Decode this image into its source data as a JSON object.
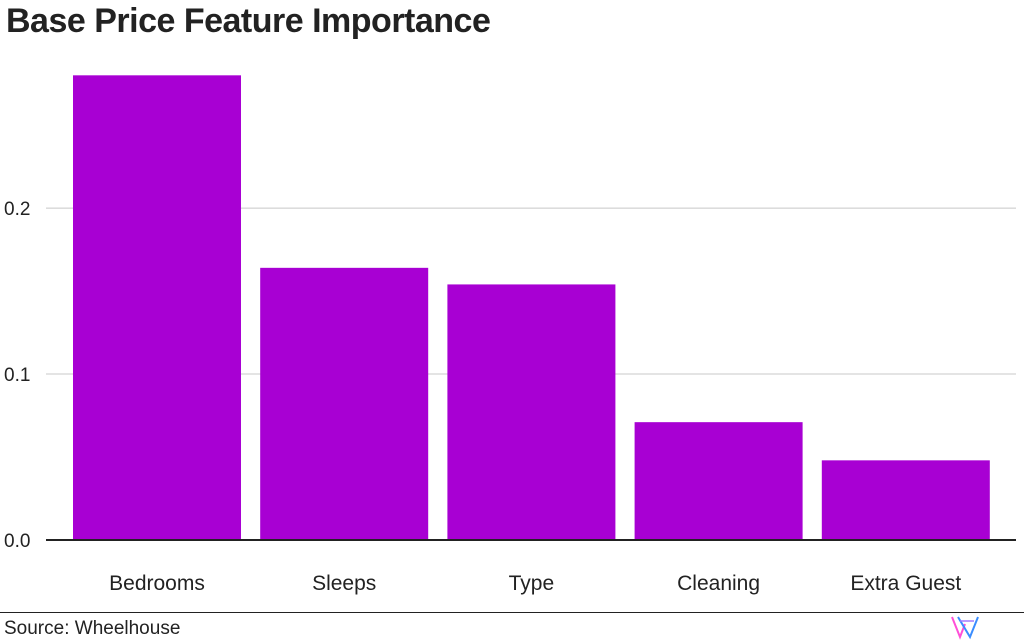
{
  "title": "Base Price Feature Importance",
  "source": "Source: Wheelhouse",
  "logo": {
    "icon": "wheelhouse-w-logo-icon",
    "colors": [
      "#ff4fd8",
      "#3a8dff"
    ]
  },
  "colors": {
    "bar": "#a800d3",
    "grid": "#c8c8c8",
    "axis": "#222222",
    "text": "#222222"
  },
  "chart_data": {
    "type": "bar",
    "categories": [
      "Bedrooms",
      "Sleeps",
      "Type",
      "Cleaning",
      "Extra Guest"
    ],
    "values": [
      0.28,
      0.164,
      0.154,
      0.071,
      0.048
    ],
    "yticks": [
      0.0,
      0.1,
      0.2
    ],
    "ytick_labels": [
      "0.0",
      "0.1",
      "0.2"
    ],
    "ylim": [
      0,
      0.282
    ],
    "grid": true,
    "xlabel": "",
    "ylabel": ""
  }
}
